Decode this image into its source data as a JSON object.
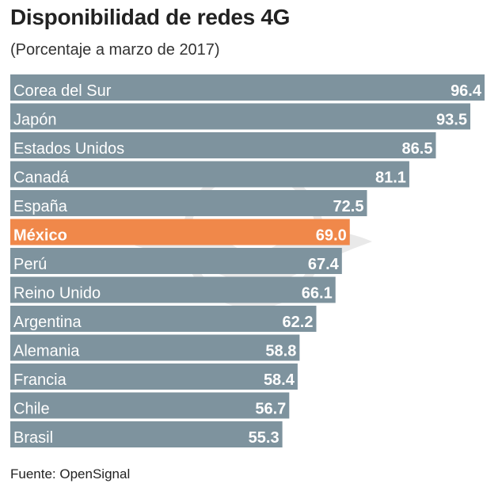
{
  "chart_data": {
    "type": "bar",
    "orientation": "horizontal",
    "title": "Disponibilidad de redes 4G",
    "subtitle": "(Porcentaje a marzo de 2017)",
    "categories": [
      "Corea del Sur",
      "Japón",
      "Estados Unidos",
      "Canadá",
      "España",
      "México",
      "Perú",
      "Reino Unido",
      "Argentina",
      "Alemania",
      "Francia",
      "Chile",
      "Brasil"
    ],
    "values": [
      96.4,
      93.5,
      86.5,
      81.1,
      72.5,
      69.0,
      67.4,
      66.1,
      62.2,
      58.8,
      58.4,
      56.7,
      55.3
    ],
    "value_labels": [
      "96.4",
      "93.5",
      "86.5",
      "81.1",
      "72.5",
      "69.0",
      "67.4",
      "66.1",
      "62.2",
      "58.8",
      "58.4",
      "56.7",
      "55.3"
    ],
    "highlight": "México",
    "xlim": [
      0,
      96.4
    ],
    "grid": false,
    "colors": {
      "bar": "#7e939e",
      "highlight": "#f0884a",
      "label": "#ffffff"
    }
  },
  "source": "Fuente: OpenSignal"
}
